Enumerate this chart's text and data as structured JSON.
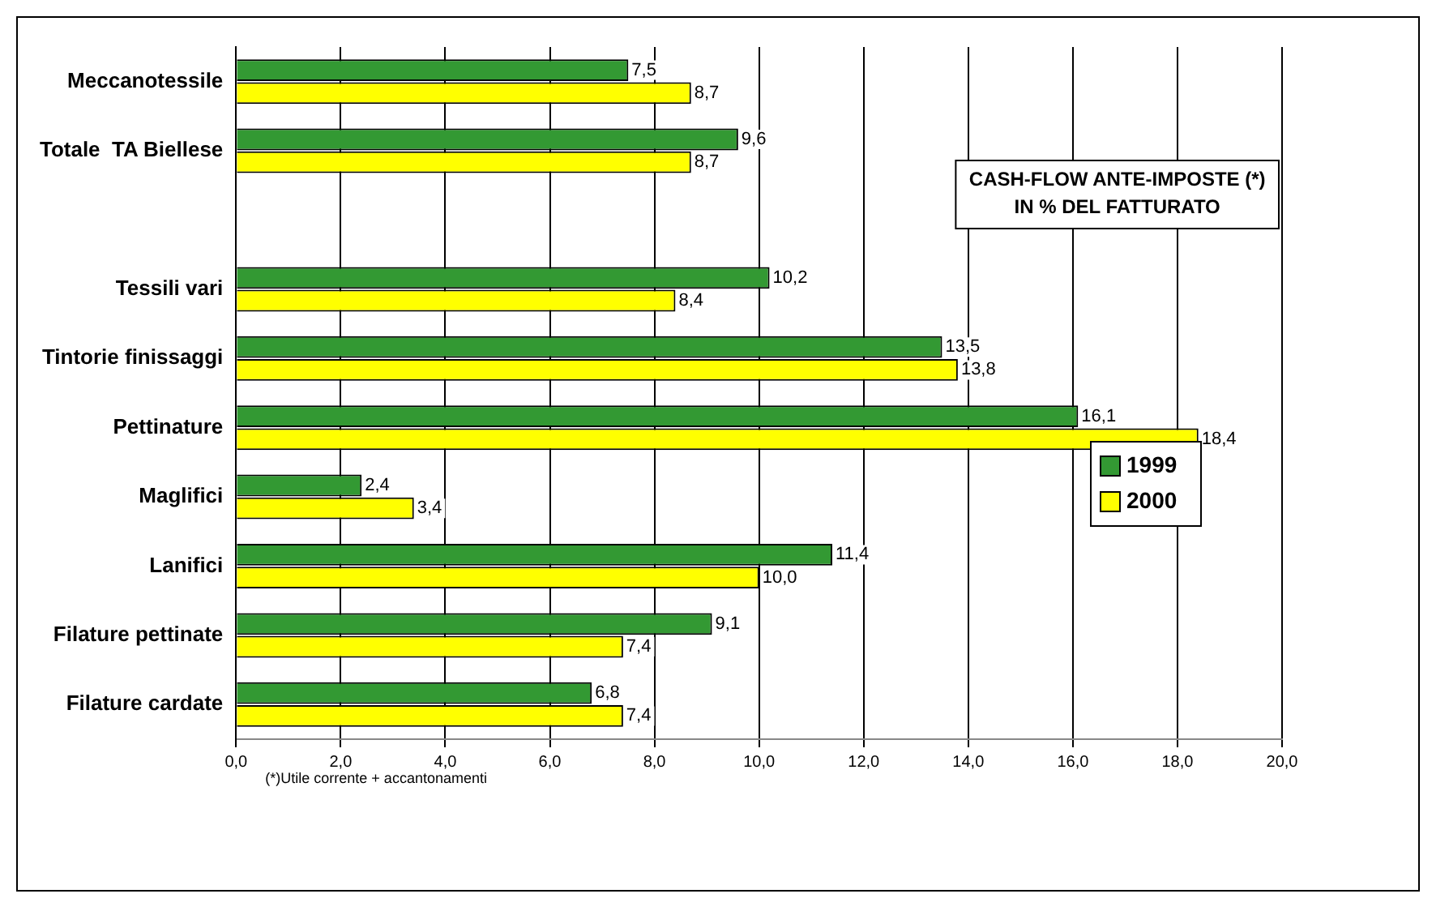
{
  "chart_data": {
    "type": "bar",
    "orientation": "horizontal",
    "title": "CASH-FLOW ANTE-IMPOSTE (*)\nIN % DEL FATTURATO",
    "categories": [
      "Meccanotessile",
      "Totale  TA Biellese",
      null,
      "Tessili vari",
      "Tintorie finissaggi",
      "Pettinature",
      "Maglifici",
      "Lanifici",
      "Filature pettinate",
      "Filature cardate"
    ],
    "series": [
      {
        "name": "1999",
        "color": "#339933",
        "values": [
          7.5,
          9.6,
          null,
          10.2,
          13.5,
          16.1,
          2.4,
          11.4,
          9.1,
          6.8
        ],
        "value_labels": [
          "7,5",
          "9,6",
          null,
          "10,2",
          "13,5",
          "16,1",
          "2,4",
          "11,4",
          "9,1",
          "6,8"
        ]
      },
      {
        "name": "2000",
        "color": "#ffff00",
        "values": [
          8.7,
          8.7,
          null,
          8.4,
          13.8,
          18.4,
          3.4,
          10.0,
          7.4,
          7.4
        ],
        "value_labels": [
          "8,7",
          "8,7",
          null,
          "8,4",
          "13,8",
          "18,4",
          "3,4",
          "10,0",
          "7,4",
          "7,4"
        ]
      }
    ],
    "xlim": [
      0,
      20
    ],
    "xticks": [
      {
        "value": 0,
        "label": "0,0"
      },
      {
        "value": 2,
        "label": "2,0"
      },
      {
        "value": 4,
        "label": "4,0"
      },
      {
        "value": 6,
        "label": "6,0"
      },
      {
        "value": 8,
        "label": "8,0"
      },
      {
        "value": 10,
        "label": "10,0"
      },
      {
        "value": 12,
        "label": "12,0"
      },
      {
        "value": 14,
        "label": "14,0"
      },
      {
        "value": 16,
        "label": "16,0"
      },
      {
        "value": 18,
        "label": "18,0"
      },
      {
        "value": 20,
        "label": "20,0"
      }
    ],
    "grid": "x",
    "legend": "right",
    "annotations": [
      "(*)Utile corrente + accantonamenti"
    ]
  }
}
